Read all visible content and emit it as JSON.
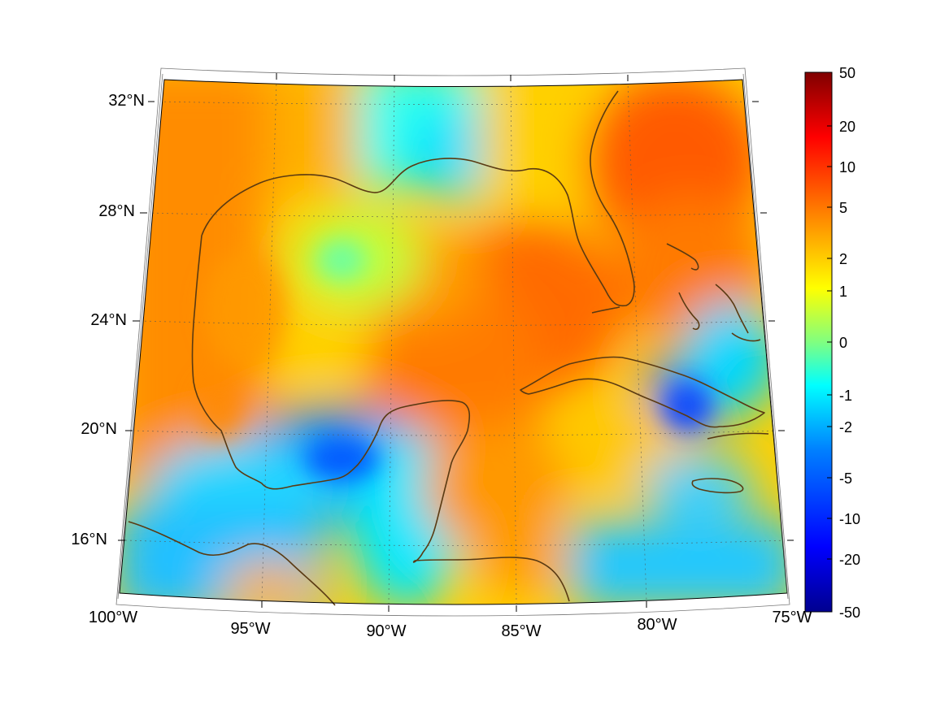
{
  "map": {
    "lat_labels": [
      "32°N",
      "28°N",
      "24°N",
      "20°N",
      "16°N"
    ],
    "lon_labels": [
      "100°W",
      "95°W",
      "90°W",
      "85°W",
      "80°W",
      "75°W"
    ]
  },
  "colorbar": {
    "tick_labels": [
      "50",
      "20",
      "10",
      "5",
      "2",
      "1",
      "0",
      "-1",
      "-2",
      "-5",
      "-10",
      "-20",
      "-50"
    ],
    "colormap": [
      "#00008f",
      "#0000ff",
      "#0080ff",
      "#00ffff",
      "#80ff80",
      "#ffff00",
      "#ff8000",
      "#ff0000",
      "#800000"
    ]
  },
  "colors": {
    "coastline": "#5a3a12",
    "frame": "#000000",
    "gridline": "#555555"
  }
}
